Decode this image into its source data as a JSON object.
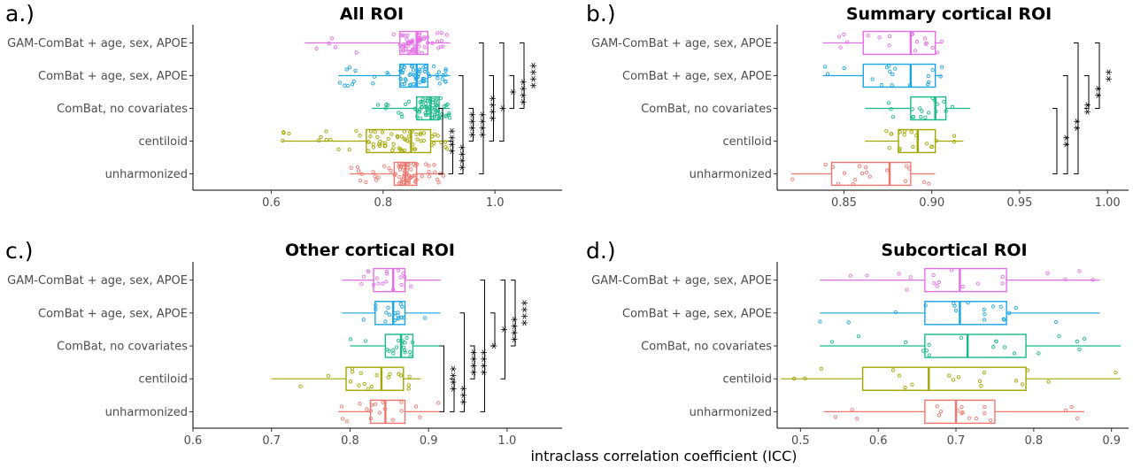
{
  "x_axis_title": "intraclass correlation coefficient (ICC)",
  "categories": [
    "GAM-ComBat + age, sex, APOE",
    "ComBat + age, sex, APOE",
    "ComBat, no covariates",
    "centiloid",
    "unharmonized"
  ],
  "colors": [
    "#e56ee8",
    "#1aa3e6",
    "#18b888",
    "#a3a500",
    "#f0766d"
  ],
  "chart_data": [
    {
      "type": "box",
      "panel_label": "a.)",
      "title": "All ROI",
      "xticks": [
        0.6,
        0.8,
        1.0
      ],
      "xlim": [
        0.46,
        1.12
      ],
      "boxes": [
        {
          "category": "GAM-ComBat + age, sex, APOE",
          "min": 0.66,
          "q1": 0.83,
          "median": 0.86,
          "q3": 0.88,
          "max": 0.92
        },
        {
          "category": "ComBat + age, sex, APOE",
          "min": 0.72,
          "q1": 0.83,
          "median": 0.86,
          "q3": 0.88,
          "max": 0.92
        },
        {
          "category": "ComBat, no covariates",
          "min": 0.78,
          "q1": 0.86,
          "median": 0.885,
          "q3": 0.9,
          "max": 0.92
        },
        {
          "category": "centiloid",
          "min": 0.62,
          "q1": 0.77,
          "median": 0.85,
          "q3": 0.885,
          "max": 0.92
        },
        {
          "category": "unharmonized",
          "min": 0.74,
          "q1": 0.82,
          "median": 0.84,
          "q3": 0.86,
          "max": 0.91
        }
      ],
      "significance": [
        {
          "from": "ComBat, no covariates",
          "to": "unharmonized",
          "label": "****"
        },
        {
          "from": "centiloid",
          "to": "unharmonized",
          "label": "****"
        },
        {
          "from": "ComBat + age, sex, APOE",
          "to": "unharmonized",
          "label": "****"
        },
        {
          "from": "ComBat, no covariates",
          "to": "centiloid",
          "label": "****"
        },
        {
          "from": "GAM-ComBat + age, sex, APOE",
          "to": "unharmonized",
          "label": "****"
        },
        {
          "from": "ComBat + age, sex, APOE",
          "to": "centiloid",
          "label": "*"
        },
        {
          "from": "GAM-ComBat + age, sex, APOE",
          "to": "centiloid",
          "label": "*"
        },
        {
          "from": "ComBat + age, sex, APOE",
          "to": "ComBat, no covariates",
          "label": "****"
        },
        {
          "from": "GAM-ComBat + age, sex, APOE",
          "to": "ComBat, no covariates",
          "label": "****"
        }
      ]
    },
    {
      "type": "box",
      "panel_label": "b.)",
      "title": "Summary cortical ROI",
      "xticks": [
        0.85,
        0.9,
        0.95,
        1.0
      ],
      "xticklabels": [
        "0.85",
        "0.90",
        "0.95",
        "1.00"
      ],
      "xlim": [
        0.812,
        1.012
      ],
      "boxes": [
        {
          "category": "GAM-ComBat + age, sex, APOE",
          "min": 0.838,
          "q1": 0.861,
          "median": 0.888,
          "q3": 0.902,
          "max": 0.906
        },
        {
          "category": "ComBat + age, sex, APOE",
          "min": 0.838,
          "q1": 0.861,
          "median": 0.888,
          "q3": 0.902,
          "max": 0.906
        },
        {
          "category": "ComBat, no covariates",
          "min": 0.862,
          "q1": 0.888,
          "median": 0.902,
          "q3": 0.908,
          "max": 0.922
        },
        {
          "category": "centiloid",
          "min": 0.862,
          "q1": 0.881,
          "median": 0.892,
          "q3": 0.902,
          "max": 0.918
        },
        {
          "category": "unharmonized",
          "min": 0.82,
          "q1": 0.843,
          "median": 0.876,
          "q3": 0.888,
          "max": 0.902
        }
      ],
      "significance": [
        {
          "from": "ComBat, no covariates",
          "to": "unharmonized",
          "label": "**"
        },
        {
          "from": "ComBat + age, sex, APOE",
          "to": "unharmonized",
          "label": "**"
        },
        {
          "from": "GAM-ComBat + age, sex, APOE",
          "to": "unharmonized",
          "label": "**"
        },
        {
          "from": "ComBat + age, sex, APOE",
          "to": "ComBat, no covariates",
          "label": "**"
        },
        {
          "from": "GAM-ComBat + age, sex, APOE",
          "to": "ComBat, no covariates",
          "label": "**"
        }
      ]
    },
    {
      "type": "box",
      "panel_label": "c.)",
      "title": "Other cortical ROI",
      "xticks": [
        0.6,
        0.7,
        0.8,
        0.9,
        1.0
      ],
      "xlim": [
        0.6,
        1.07
      ],
      "boxes": [
        {
          "category": "GAM-ComBat + age, sex, APOE",
          "min": 0.79,
          "q1": 0.83,
          "median": 0.855,
          "q3": 0.87,
          "max": 0.915
        },
        {
          "category": "ComBat + age, sex, APOE",
          "min": 0.79,
          "q1": 0.832,
          "median": 0.855,
          "q3": 0.87,
          "max": 0.915
        },
        {
          "category": "ComBat, no covariates",
          "min": 0.8,
          "q1": 0.845,
          "median": 0.865,
          "q3": 0.88,
          "max": 0.915
        },
        {
          "category": "centiloid",
          "min": 0.7,
          "q1": 0.795,
          "median": 0.84,
          "q3": 0.868,
          "max": 0.89
        },
        {
          "category": "unharmonized",
          "min": 0.785,
          "q1": 0.826,
          "median": 0.845,
          "q3": 0.87,
          "max": 0.915
        }
      ],
      "significance": [
        {
          "from": "ComBat, no covariates",
          "to": "unharmonized",
          "label": "****"
        },
        {
          "from": "centiloid",
          "to": "unharmonized",
          "label": "***"
        },
        {
          "from": "ComBat + age, sex, APOE",
          "to": "unharmonized",
          "label": "****"
        },
        {
          "from": "ComBat, no covariates",
          "to": "centiloid",
          "label": "****"
        },
        {
          "from": "GAM-ComBat + age, sex, APOE",
          "to": "unharmonized",
          "label": "*"
        },
        {
          "from": "ComBat + age, sex, APOE",
          "to": "ComBat, no covariates",
          "label": "*"
        },
        {
          "from": "GAM-ComBat + age, sex, APOE",
          "to": "centiloid",
          "label": "****"
        },
        {
          "from": "GAM-ComBat + age, sex, APOE",
          "to": "ComBat, no covariates",
          "label": "****"
        }
      ]
    },
    {
      "type": "box",
      "panel_label": "d.)",
      "title": "Subcortical ROI",
      "xticks": [
        0.5,
        0.6,
        0.7,
        0.8,
        0.9
      ],
      "xlim": [
        0.47,
        0.922
      ],
      "boxes": [
        {
          "category": "GAM-ComBat + age, sex, APOE",
          "min": 0.525,
          "q1": 0.66,
          "median": 0.705,
          "q3": 0.765,
          "max": 0.885
        },
        {
          "category": "ComBat + age, sex, APOE",
          "min": 0.525,
          "q1": 0.66,
          "median": 0.705,
          "q3": 0.765,
          "max": 0.885
        },
        {
          "category": "ComBat, no covariates",
          "min": 0.525,
          "q1": 0.66,
          "median": 0.715,
          "q3": 0.79,
          "max": 0.912
        },
        {
          "category": "centiloid",
          "min": 0.475,
          "q1": 0.58,
          "median": 0.665,
          "q3": 0.79,
          "max": 0.912
        },
        {
          "category": "unharmonized",
          "min": 0.53,
          "q1": 0.66,
          "median": 0.7,
          "q3": 0.75,
          "max": 0.865
        }
      ],
      "significance": []
    }
  ]
}
